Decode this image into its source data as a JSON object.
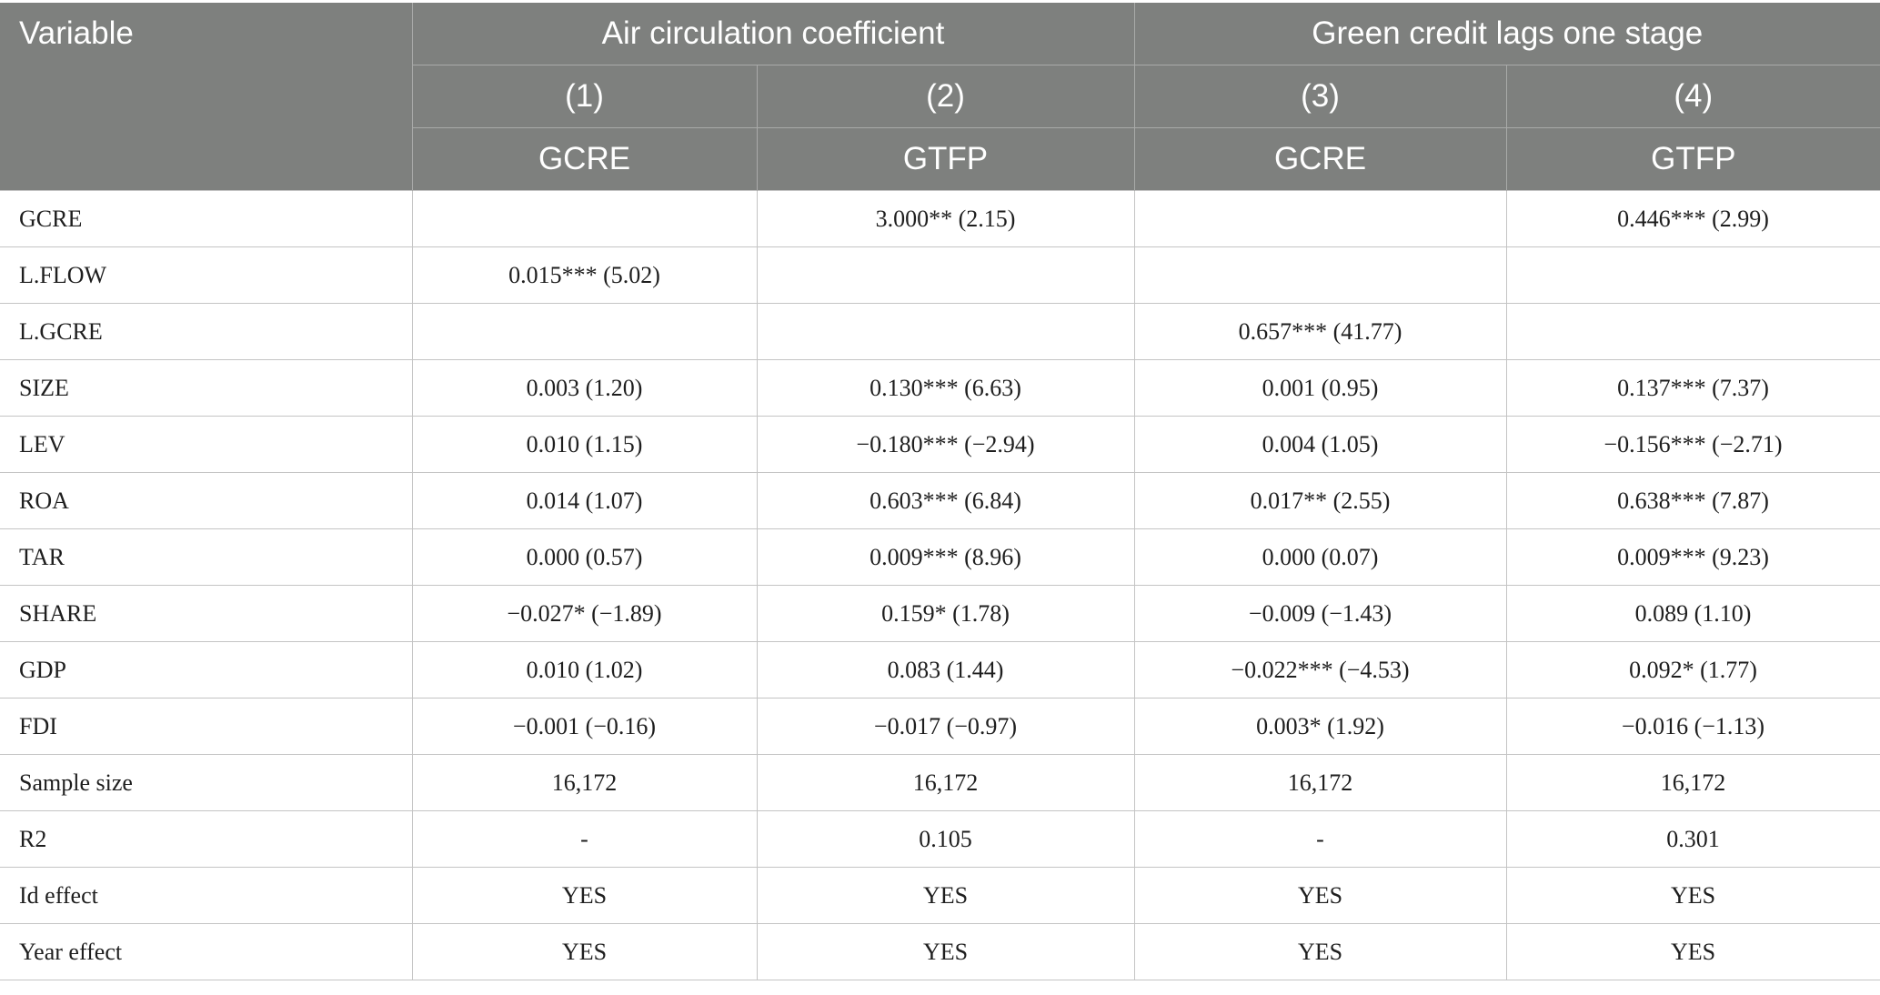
{
  "header": {
    "variable_label": "Variable",
    "groups": [
      {
        "label": "Air circulation coefficient"
      },
      {
        "label": "Green credit lags one stage"
      }
    ],
    "model_numbers": [
      "(1)",
      "(2)",
      "(3)",
      "(4)"
    ],
    "dependent_vars": [
      "GCRE",
      "GTFP",
      "GCRE",
      "GTFP"
    ]
  },
  "rows": [
    {
      "label": "GCRE",
      "cells": [
        "",
        "3.000** (2.15)",
        "",
        "0.446*** (2.99)"
      ]
    },
    {
      "label": "L.FLOW",
      "cells": [
        "0.015*** (5.02)",
        "",
        "",
        ""
      ]
    },
    {
      "label": "L.GCRE",
      "cells": [
        "",
        "",
        "0.657*** (41.77)",
        ""
      ]
    },
    {
      "label": "SIZE",
      "cells": [
        "0.003 (1.20)",
        "0.130*** (6.63)",
        "0.001 (0.95)",
        "0.137*** (7.37)"
      ]
    },
    {
      "label": "LEV",
      "cells": [
        "0.010 (1.15)",
        "−0.180*** (−2.94)",
        "0.004 (1.05)",
        "−0.156*** (−2.71)"
      ]
    },
    {
      "label": "ROA",
      "cells": [
        "0.014 (1.07)",
        "0.603*** (6.84)",
        "0.017** (2.55)",
        "0.638*** (7.87)"
      ]
    },
    {
      "label": "TAR",
      "cells": [
        "0.000 (0.57)",
        "0.009*** (8.96)",
        "0.000 (0.07)",
        "0.009*** (9.23)"
      ]
    },
    {
      "label": "SHARE",
      "cells": [
        "−0.027* (−1.89)",
        "0.159* (1.78)",
        "−0.009 (−1.43)",
        "0.089 (1.10)"
      ]
    },
    {
      "label": "GDP",
      "cells": [
        "0.010 (1.02)",
        "0.083 (1.44)",
        "−0.022*** (−4.53)",
        "0.092* (1.77)"
      ]
    },
    {
      "label": "FDI",
      "cells": [
        "−0.001 (−0.16)",
        "−0.017 (−0.97)",
        "0.003* (1.92)",
        "−0.016 (−1.13)"
      ]
    },
    {
      "label": "Sample size",
      "cells": [
        "16,172",
        "16,172",
        "16,172",
        "16,172"
      ]
    },
    {
      "label": "R2",
      "cells": [
        "-",
        "0.105",
        "-",
        "0.301"
      ]
    },
    {
      "label": "Id effect",
      "cells": [
        "YES",
        "YES",
        "YES",
        "YES"
      ]
    },
    {
      "label": "Year effect",
      "cells": [
        "YES",
        "YES",
        "YES",
        "YES"
      ]
    }
  ],
  "colors": {
    "header_bg": "#7e807e",
    "header_text": "#ffffff",
    "grid_line": "#c4c4c4",
    "body_text": "#1e1e1e"
  }
}
